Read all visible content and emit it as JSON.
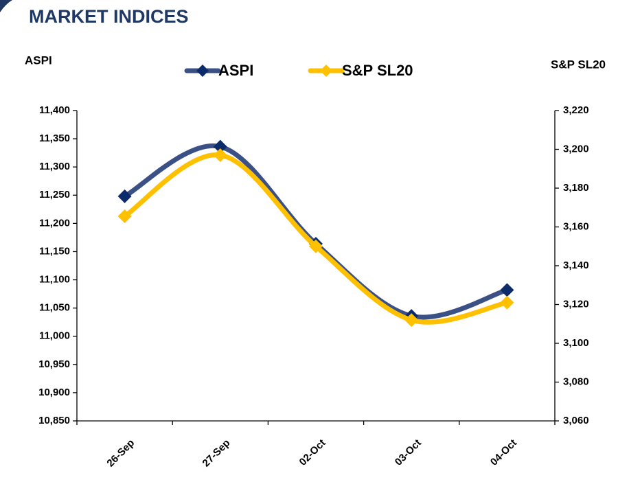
{
  "chart_data": {
    "type": "line",
    "title": "MARKET INDICES",
    "ylabel": "ASPI",
    "y2label": "S&P SL20",
    "categories": [
      "26-Sep",
      "27-Sep",
      "02-Oct",
      "03-Oct",
      "04-Oct"
    ],
    "series": [
      {
        "name": "ASPI",
        "color": "#3b5186",
        "marker_color": "#0c2b6b",
        "values": [
          11248,
          11336,
          11164,
          11036,
          11082
        ]
      },
      {
        "name": "S&P SL20",
        "color": "#ffc000",
        "marker_color": "#ffc000",
        "axis": "y2",
        "values": [
          3165.5,
          3197,
          3150,
          3112,
          3121
        ]
      }
    ],
    "ylim": [
      10850,
      11400
    ],
    "yticks": [
      {
        "value": 10850,
        "label": "10,850"
      },
      {
        "value": 10900,
        "label": "10,900"
      },
      {
        "value": 10950,
        "label": "10,950"
      },
      {
        "value": 11000,
        "label": "11,000"
      },
      {
        "value": 11050,
        "label": "11,050"
      },
      {
        "value": 11100,
        "label": "11,100"
      },
      {
        "value": 11150,
        "label": "11,150"
      },
      {
        "value": 11200,
        "label": "11,200"
      },
      {
        "value": 11250,
        "label": "11,250"
      },
      {
        "value": 11300,
        "label": "11,300"
      },
      {
        "value": 11350,
        "label": "11,350"
      },
      {
        "value": 11400,
        "label": "11,400"
      }
    ],
    "y2lim": [
      3060,
      3220
    ],
    "y2ticks": [
      {
        "value": 3060,
        "label": "3,060"
      },
      {
        "value": 3080,
        "label": "3,080"
      },
      {
        "value": 3100,
        "label": "3,100"
      },
      {
        "value": 3120,
        "label": "3,120"
      },
      {
        "value": 3140,
        "label": "3,140"
      },
      {
        "value": 3160,
        "label": "3,160"
      },
      {
        "value": 3180,
        "label": "3,180"
      },
      {
        "value": 3200,
        "label": "3,200"
      },
      {
        "value": 3220,
        "label": "3,220"
      }
    ]
  }
}
